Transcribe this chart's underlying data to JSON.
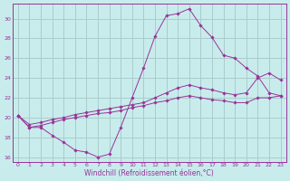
{
  "xlabel": "Windchill (Refroidissement éolien,°C)",
  "background_color": "#c8ecec",
  "grid_color": "#aacccc",
  "line_color": "#993399",
  "xlim": [
    -0.5,
    23.5
  ],
  "ylim": [
    15.5,
    31.5
  ],
  "yticks": [
    16,
    18,
    20,
    22,
    24,
    26,
    28,
    30
  ],
  "xticks": [
    0,
    1,
    2,
    3,
    4,
    5,
    6,
    7,
    8,
    9,
    10,
    11,
    12,
    13,
    14,
    15,
    16,
    17,
    18,
    19,
    20,
    21,
    22,
    23
  ],
  "series": [
    [
      20.2,
      19.0,
      19.0,
      18.2,
      17.5,
      16.7,
      16.5,
      16.0,
      16.3,
      19.0,
      22.0,
      25.0,
      28.2,
      30.3,
      30.5,
      31.0,
      29.3,
      28.1,
      26.3,
      26.0,
      25.0,
      24.2,
      22.5,
      22.2
    ],
    [
      20.2,
      19.0,
      19.2,
      19.5,
      19.8,
      20.0,
      20.2,
      20.4,
      20.5,
      20.7,
      21.0,
      21.2,
      21.5,
      21.7,
      22.0,
      22.2,
      22.0,
      21.8,
      21.7,
      21.5,
      21.5,
      22.0,
      22.0,
      22.2
    ],
    [
      20.2,
      19.3,
      19.5,
      19.8,
      20.0,
      20.3,
      20.5,
      20.7,
      20.9,
      21.1,
      21.3,
      21.5,
      22.0,
      22.5,
      23.0,
      23.3,
      23.0,
      22.8,
      22.5,
      22.3,
      22.5,
      24.0,
      24.5,
      23.8
    ]
  ],
  "tick_fontsize": 4.5,
  "xlabel_fontsize": 5.5
}
